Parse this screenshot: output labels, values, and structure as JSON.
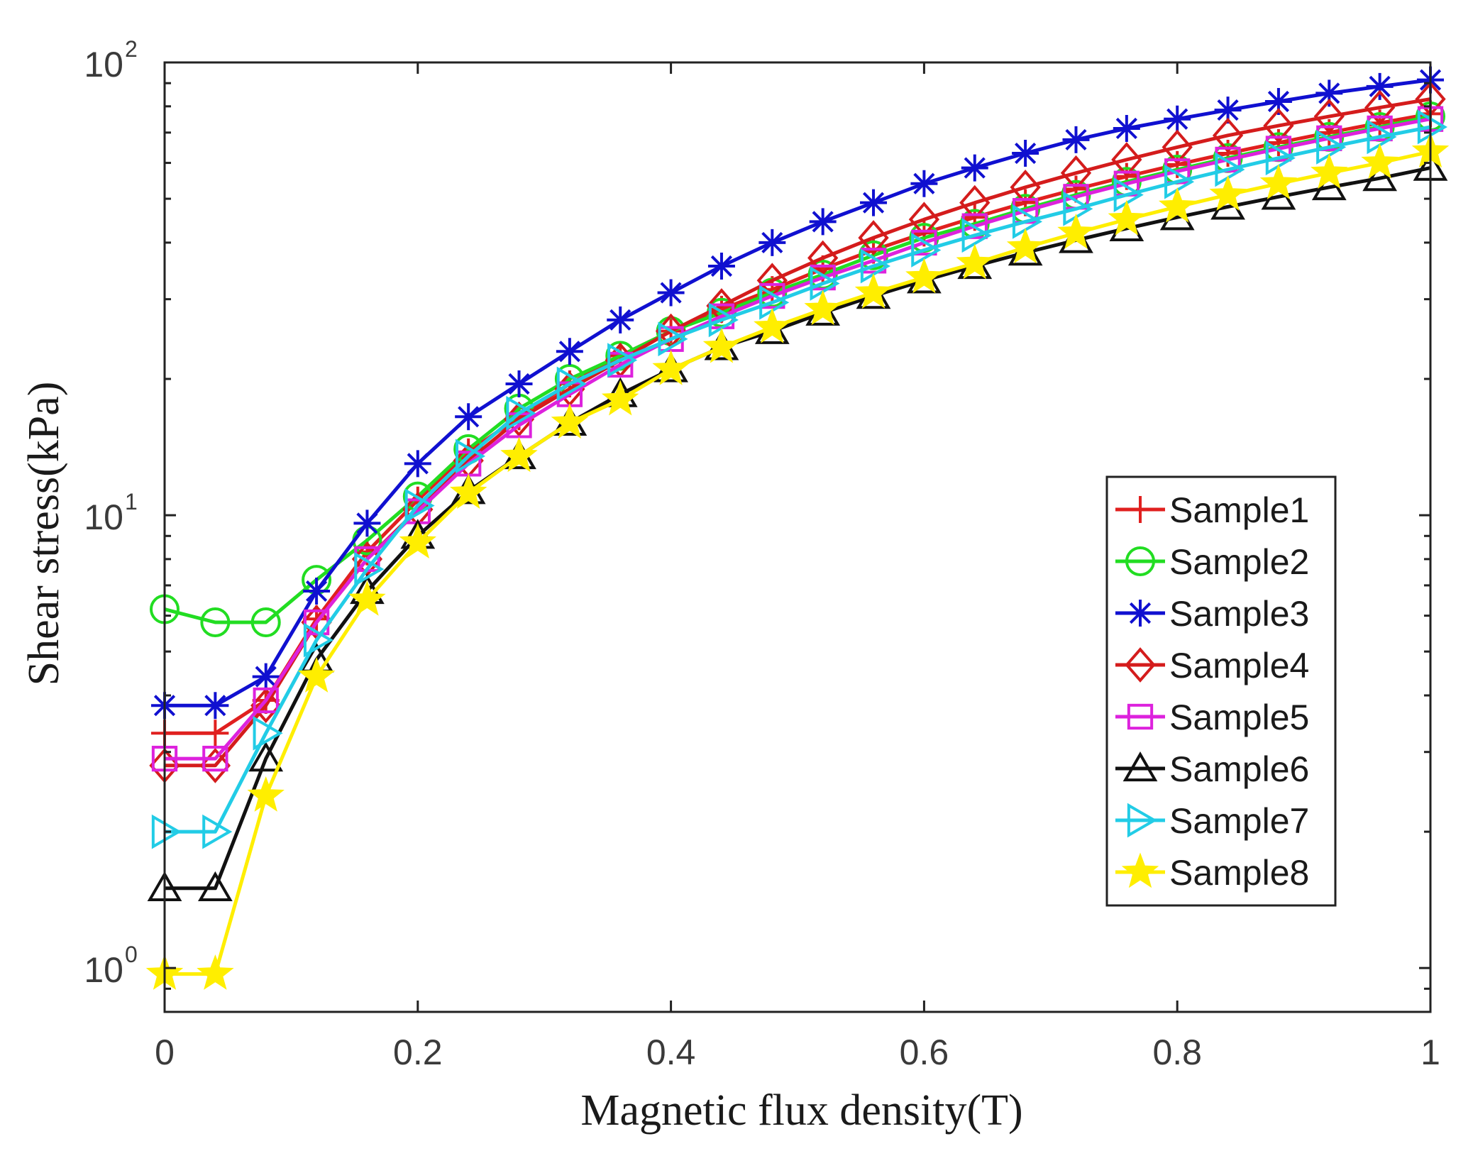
{
  "chart_data": {
    "type": "line",
    "title": "",
    "xlabel": "Magnetic flux density(T)",
    "ylabel": "Shear stress(kPa)",
    "xscale": "linear",
    "yscale": "log",
    "xlim": [
      0,
      1
    ],
    "ylim": [
      0.8,
      100
    ],
    "xticks": [
      {
        "value": 0,
        "label": "0"
      },
      {
        "value": 0.2,
        "label": "0.2"
      },
      {
        "value": 0.4,
        "label": "0.4"
      },
      {
        "value": 0.6,
        "label": "0.6"
      },
      {
        "value": 0.8,
        "label": "0.8"
      },
      {
        "value": 1,
        "label": "1"
      }
    ],
    "yticks": [
      {
        "value": 1,
        "base": "10",
        "exp": "0"
      },
      {
        "value": 10,
        "base": "10",
        "exp": "1"
      },
      {
        "value": 100,
        "base": "10",
        "exp": "2"
      }
    ],
    "grid": false,
    "legend_position": "right",
    "x": [
      0,
      0.04,
      0.08,
      0.12,
      0.16,
      0.2,
      0.24,
      0.28,
      0.32,
      0.36,
      0.4,
      0.44,
      0.48,
      0.52,
      0.56,
      0.6,
      0.64,
      0.68,
      0.72,
      0.76,
      0.8,
      0.84,
      0.88,
      0.92,
      0.96,
      1.0
    ],
    "series": [
      {
        "name": "Sample1",
        "color": "#e0201f",
        "marker": "plus",
        "values": [
          3.3,
          3.3,
          3.9,
          5.9,
          8.3,
          10.8,
          13.8,
          16.5,
          19.5,
          22.5,
          25.5,
          28.5,
          31.5,
          35.0,
          38.5,
          42.0,
          45.5,
          49.0,
          52.5,
          56.0,
          59.5,
          63.0,
          66.5,
          70.0,
          73.5,
          77.0
        ]
      },
      {
        "name": "Sample2",
        "color": "#22dd22",
        "marker": "circle",
        "values": [
          6.2,
          5.8,
          5.8,
          7.2,
          8.8,
          11.0,
          14.0,
          17.2,
          20.0,
          22.5,
          25.5,
          28.0,
          31.0,
          34.0,
          37.5,
          41.0,
          44.0,
          47.5,
          51.0,
          54.5,
          58.0,
          61.5,
          65.0,
          68.5,
          72.0,
          76.0
        ]
      },
      {
        "name": "Sample3",
        "color": "#1010d0",
        "marker": "asterisk",
        "values": [
          3.8,
          3.8,
          4.4,
          6.8,
          9.6,
          13.0,
          16.5,
          19.5,
          23.0,
          27.0,
          31.0,
          35.5,
          40.0,
          44.5,
          49.0,
          54.0,
          58.5,
          63.0,
          67.5,
          71.5,
          75.0,
          78.5,
          82.0,
          85.5,
          88.5,
          91.5
        ]
      },
      {
        "name": "Sample4",
        "color": "#d41c1c",
        "marker": "diamond",
        "values": [
          2.8,
          2.8,
          3.8,
          5.8,
          8.0,
          10.3,
          13.2,
          16.3,
          19.0,
          22.0,
          25.5,
          29.0,
          33.0,
          37.0,
          41.0,
          45.0,
          49.0,
          53.0,
          57.0,
          61.0,
          65.0,
          69.0,
          72.5,
          76.0,
          79.5,
          83.0
        ]
      },
      {
        "name": "Sample5",
        "color": "#dd22dd",
        "marker": "square",
        "values": [
          2.9,
          2.9,
          3.9,
          5.8,
          8.0,
          10.2,
          13.0,
          15.8,
          18.5,
          21.5,
          24.5,
          27.5,
          30.5,
          33.5,
          36.5,
          40.0,
          43.5,
          47.0,
          50.5,
          54.0,
          57.5,
          61.0,
          64.5,
          68.0,
          71.5,
          75.0
        ]
      },
      {
        "name": "Sample6",
        "color": "#111111",
        "marker": "triangle-up",
        "values": [
          1.5,
          1.5,
          2.9,
          4.8,
          6.8,
          9.0,
          11.3,
          13.5,
          16.0,
          18.5,
          21.0,
          23.5,
          25.5,
          28.0,
          30.5,
          33.0,
          35.5,
          38.0,
          40.5,
          43.0,
          45.5,
          48.0,
          50.5,
          53.0,
          55.5,
          58.5
        ]
      },
      {
        "name": "Sample7",
        "color": "#22cce6",
        "marker": "triangle-right",
        "values": [
          2.0,
          2.0,
          3.3,
          5.3,
          7.6,
          10.5,
          13.5,
          16.8,
          19.5,
          22.0,
          24.5,
          27.0,
          29.5,
          32.5,
          35.5,
          38.5,
          41.5,
          44.5,
          47.5,
          51.0,
          54.5,
          58.0,
          61.5,
          65.0,
          68.5,
          72.0
        ]
      },
      {
        "name": "Sample8",
        "color": "#ffee00",
        "marker": "pentagram",
        "values": [
          0.97,
          0.97,
          2.4,
          4.4,
          6.5,
          8.7,
          11.2,
          13.5,
          16.0,
          18.0,
          21.0,
          23.5,
          26.0,
          28.5,
          31.0,
          33.5,
          36.0,
          39.0,
          42.0,
          45.0,
          48.0,
          51.0,
          54.0,
          57.0,
          60.0,
          63.5
        ]
      }
    ]
  }
}
